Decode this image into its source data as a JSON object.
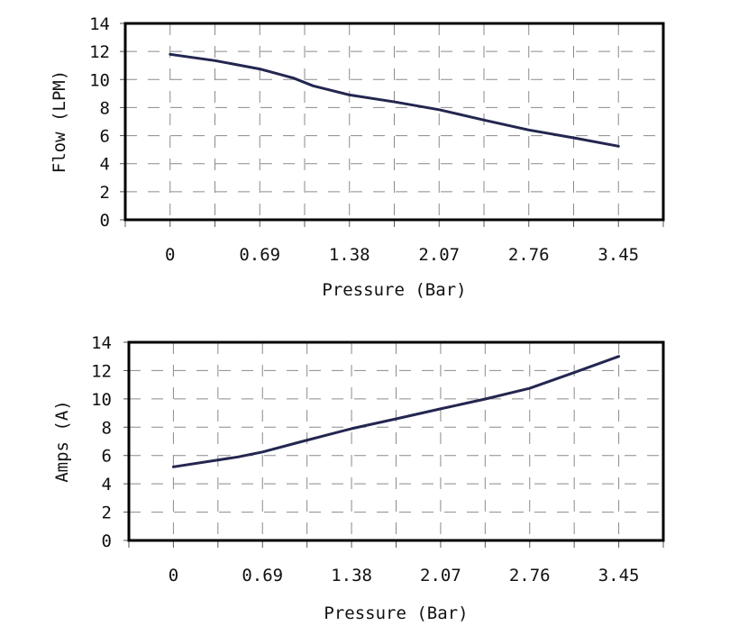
{
  "chart_data": [
    {
      "type": "line",
      "title": "",
      "xlabel": "Pressure (Bar)",
      "ylabel": "Flow (LPM)",
      "categories": [
        "0",
        "0.69",
        "1.38",
        "2.07",
        "2.76",
        "3.45"
      ],
      "ylim": [
        0,
        14
      ],
      "yticks": [
        "0",
        "2",
        "4",
        "6",
        "8",
        "10",
        "12",
        "14"
      ],
      "grid": true,
      "legend": "none",
      "line_color": "#23264f",
      "series": [
        {
          "x": [
            0,
            0.345,
            0.69,
            0.95,
            1.1,
            1.38,
            1.73,
            2.07,
            2.42,
            2.76,
            3.1,
            3.45
          ],
          "values": [
            11.8,
            11.35,
            10.75,
            10.1,
            9.55,
            8.9,
            8.4,
            7.85,
            7.1,
            6.4,
            5.85,
            5.25
          ]
        }
      ]
    },
    {
      "type": "line",
      "title": "",
      "xlabel": "Pressure (Bar)",
      "ylabel": "Amps (A)",
      "categories": [
        "0",
        "0.69",
        "1.38",
        "2.07",
        "2.76",
        "3.45"
      ],
      "ylim": [
        0,
        14
      ],
      "yticks": [
        "0",
        "2",
        "4",
        "6",
        "8",
        "10",
        "12",
        "14"
      ],
      "grid": true,
      "legend": "none",
      "line_color": "#23264f",
      "series": [
        {
          "x": [
            0,
            0.5,
            0.69,
            1.0,
            1.38,
            1.73,
            2.07,
            2.42,
            2.76,
            3.1,
            3.45
          ],
          "values": [
            5.2,
            5.9,
            6.25,
            7.0,
            7.9,
            8.6,
            9.3,
            10.0,
            10.75,
            11.85,
            13.0
          ]
        }
      ]
    }
  ]
}
